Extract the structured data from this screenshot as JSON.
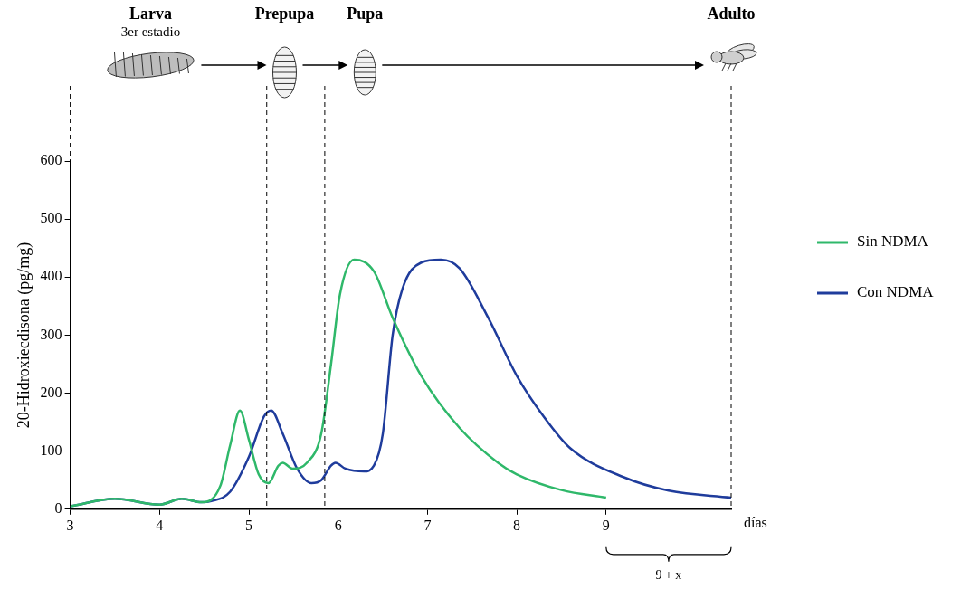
{
  "chart_data": {
    "type": "line",
    "y_label": "20-Hidroxiecdisona (pg/mg)",
    "x_label": "días",
    "xlim": [
      3,
      10.4
    ],
    "xticks": [
      3,
      4,
      5,
      6,
      7,
      8,
      9
    ],
    "ylim": [
      0,
      600
    ],
    "yticks": [
      0,
      100,
      200,
      300,
      400,
      500,
      600
    ],
    "grid": false,
    "legend": "right",
    "series": [
      {
        "name": "Sin NDMA",
        "color": "#2fb86a",
        "x": [
          3.0,
          3.5,
          4.0,
          4.25,
          4.47,
          4.68,
          4.79,
          4.9,
          5.0,
          5.11,
          5.22,
          5.33,
          5.38,
          5.49,
          5.65,
          5.81,
          5.92,
          6.02,
          6.18,
          6.4,
          6.61,
          6.93,
          7.36,
          7.79,
          8.0,
          8.5,
          9.0
        ],
        "values": [
          5,
          18,
          8,
          18,
          12,
          40,
          110,
          170,
          120,
          60,
          45,
          75,
          80,
          70,
          80,
          130,
          250,
          370,
          430,
          410,
          330,
          230,
          140,
          80,
          60,
          33,
          20
        ]
      },
      {
        "name": "Con NDMA",
        "color": "#1f3c9c",
        "x": [
          3.0,
          3.5,
          4.0,
          4.25,
          4.47,
          4.58,
          4.79,
          5.0,
          5.17,
          5.25,
          5.38,
          5.54,
          5.7,
          5.81,
          5.92,
          5.97,
          6.08,
          6.29,
          6.4,
          6.5,
          6.61,
          6.72,
          6.93,
          7.15,
          7.36,
          7.68,
          8.0,
          8.3,
          8.6,
          9.2,
          9.7,
          10.4
        ],
        "values": [
          5,
          18,
          8,
          18,
          12,
          14,
          30,
          90,
          160,
          170,
          130,
          70,
          45,
          50,
          75,
          80,
          70,
          65,
          75,
          130,
          300,
          380,
          425,
          430,
          415,
          330,
          230,
          160,
          105,
          55,
          32,
          20
        ]
      }
    ],
    "stages": [
      {
        "label": "Larva",
        "sublabel": "3er estadio",
        "x": 3.9
      },
      {
        "label": "Prepupa",
        "x": 5.4
      },
      {
        "label": "Pupa",
        "x": 6.3
      },
      {
        "label": "Adulto",
        "x": 10.4
      }
    ],
    "stage_lines": [
      3,
      5.2,
      5.85,
      10.4
    ],
    "annotations": [
      {
        "text": "9 + x",
        "x_from": 9,
        "x_to": 10.4
      }
    ]
  }
}
